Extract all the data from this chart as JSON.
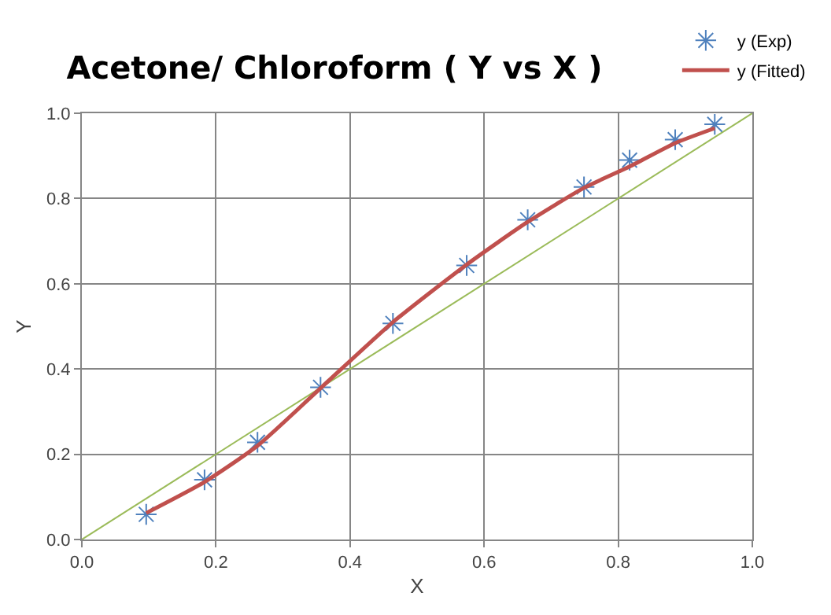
{
  "chart_data": {
    "type": "scatter",
    "title": "Acetone/ Chloroform ( Y vs X )",
    "xlabel": "X",
    "ylabel": "Y",
    "xlim": [
      0,
      1
    ],
    "ylim": [
      0,
      1
    ],
    "xticks": [
      {
        "value": 0,
        "label": "0.0"
      },
      0.2,
      0.4,
      0.6,
      0.8,
      {
        "value": 1,
        "label": "1.0"
      }
    ],
    "yticks": [
      {
        "value": 0,
        "label": "0.0"
      },
      0.2,
      0.4,
      0.6,
      0.8,
      {
        "value": 1,
        "label": "1.0"
      }
    ],
    "grid": true,
    "legend": "top right",
    "series": [
      {
        "name": "y (Exp)",
        "marker": "cross",
        "color": "#4f81bd",
        "x": [
          0.096,
          0.183,
          0.262,
          0.356,
          0.464,
          0.574,
          0.665,
          0.749,
          0.817,
          0.885,
          0.944
        ],
        "values": [
          0.059,
          0.14,
          0.228,
          0.357,
          0.507,
          0.643,
          0.75,
          0.827,
          0.89,
          0.938,
          0.974
        ]
      },
      {
        "name": "y (Fitted)",
        "type": "line",
        "marker": "none",
        "color": "#c0504d",
        "x": [
          0.096,
          0.183,
          0.262,
          0.356,
          0.464,
          0.574,
          0.665,
          0.749,
          0.817,
          0.885,
          0.944
        ],
        "values": [
          0.062,
          0.135,
          0.22,
          0.355,
          0.51,
          0.645,
          0.745,
          0.825,
          0.875,
          0.93,
          0.965
        ]
      },
      {
        "type": "line",
        "marker": "none",
        "color": "#9bbb59",
        "x": [
          0,
          1
        ],
        "values": [
          0,
          1
        ]
      }
    ]
  }
}
